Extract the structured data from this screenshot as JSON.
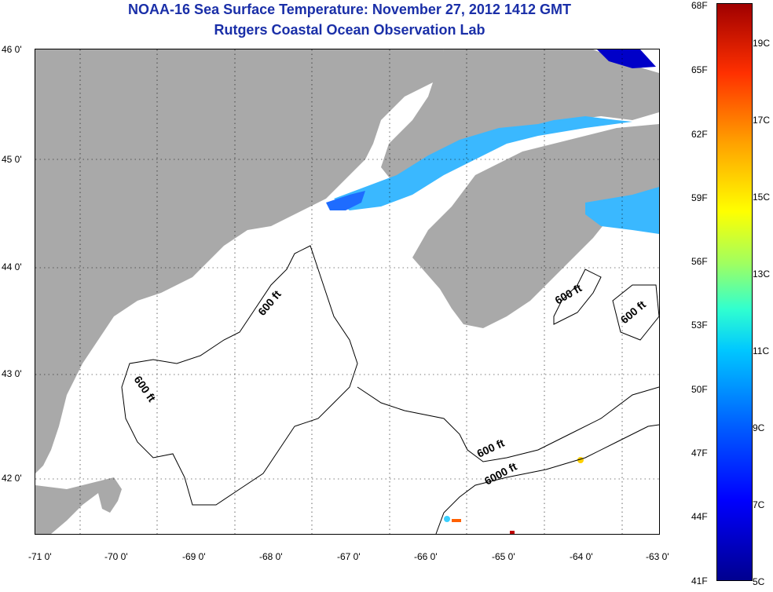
{
  "title": "NOAA-16 Sea Surface Temperature:  November 27, 2012 1412 GMT",
  "subtitle": "Rutgers Coastal Ocean Observation Lab",
  "lon_ticks": [
    "-71 0'",
    "-70 0'",
    "-69 0'",
    "-68 0'",
    "-67 0'",
    "-66 0'",
    "-65 0'",
    "-64 0'",
    "-63 0'"
  ],
  "lat_ticks": [
    "46 0'",
    "45 0'",
    "44 0'",
    "43 0'",
    "42 0'"
  ],
  "contour_labels": [
    "600 ft",
    "600 ft",
    "600 ft",
    "600 ft",
    "600 ft",
    "6000 ft"
  ],
  "colorbar": {
    "fahrenheit": [
      "68F",
      "65F",
      "62F",
      "59F",
      "56F",
      "53F",
      "50F",
      "47F",
      "44F",
      "41F"
    ],
    "celsius": [
      "19C",
      "17C",
      "15C",
      "13C",
      "11C",
      "9C",
      "7C",
      "5C"
    ]
  },
  "colors": {
    "title": "#1a2fa8",
    "land": "#a9a9a9",
    "ocean_nodata": "#ffffff",
    "sst_cold": "#1e6cff",
    "sst_cool": "#3ab8ff"
  }
}
